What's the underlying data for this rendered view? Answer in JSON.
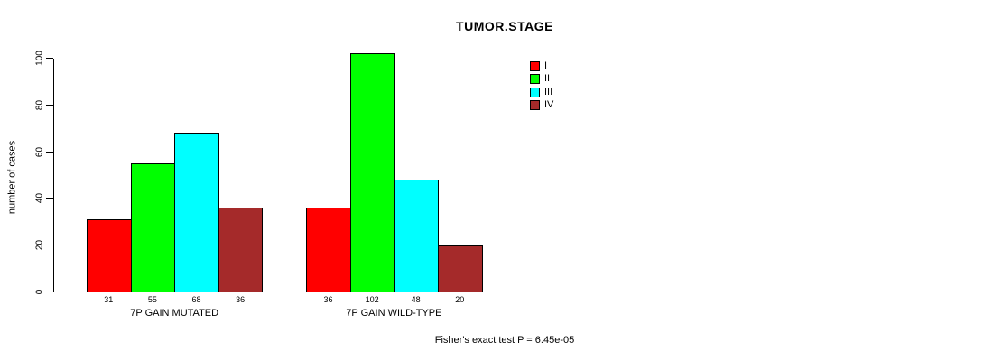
{
  "chart_data": {
    "type": "bar",
    "title": "TUMOR.STAGE",
    "xlabel": "",
    "ylabel": "number of cases",
    "ylim": [
      0,
      102
    ],
    "yticks": [
      0,
      20,
      40,
      60,
      80,
      100
    ],
    "grid": false,
    "legend_position": "top-right",
    "bar_value_labels": true,
    "categories": [
      "7P GAIN MUTATED",
      "7P GAIN WILD-TYPE"
    ],
    "series": [
      {
        "name": "I",
        "color": "#FF0000",
        "values": [
          31,
          36
        ]
      },
      {
        "name": "II",
        "color": "#00FF00",
        "values": [
          55,
          102
        ]
      },
      {
        "name": "III",
        "color": "#00FFFF",
        "values": [
          68,
          48
        ]
      },
      {
        "name": "IV",
        "color": "#A52A2A",
        "values": [
          36,
          20
        ]
      }
    ],
    "annotation": "Fisher's exact test P = 6.45e-05",
    "colors": {
      "background": "#FFFFFF",
      "axis": "#000000",
      "text": "#000000"
    }
  }
}
